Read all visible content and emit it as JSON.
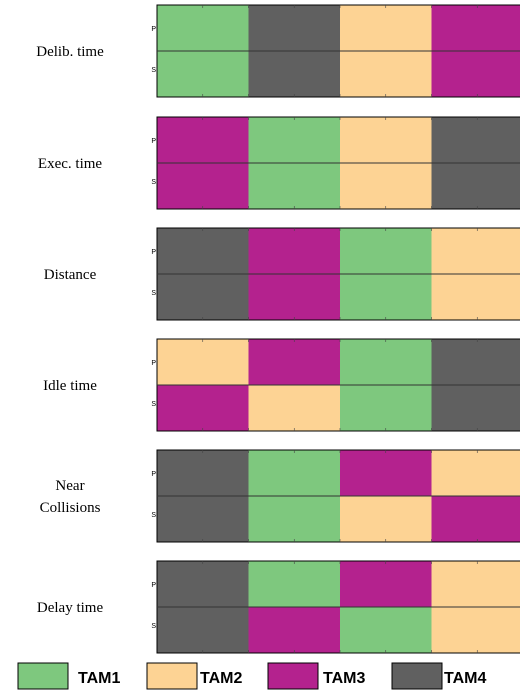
{
  "chart_data": {
    "type": "heatmap",
    "row_labels": [
      "P",
      "S"
    ],
    "categories": [
      "TAM1",
      "TAM2",
      "TAM3",
      "TAM4"
    ],
    "colors": {
      "TAM1": "#7ec87e",
      "TAM2": "#fdd394",
      "TAM3": "#b4228e",
      "TAM4": "#606060"
    },
    "metrics": [
      {
        "label": [
          "Delib. time"
        ],
        "rows": [
          [
            "TAM1",
            "TAM4",
            "TAM2",
            "TAM3"
          ],
          [
            "TAM1",
            "TAM4",
            "TAM2",
            "TAM3"
          ]
        ]
      },
      {
        "label": [
          "Exec. time"
        ],
        "rows": [
          [
            "TAM3",
            "TAM1",
            "TAM2",
            "TAM4"
          ],
          [
            "TAM3",
            "TAM1",
            "TAM2",
            "TAM4"
          ]
        ]
      },
      {
        "label": [
          "Distance"
        ],
        "rows": [
          [
            "TAM4",
            "TAM3",
            "TAM1",
            "TAM2"
          ],
          [
            "TAM4",
            "TAM3",
            "TAM1",
            "TAM2"
          ]
        ]
      },
      {
        "label": [
          "Idle time"
        ],
        "rows": [
          [
            "TAM2",
            "TAM3",
            "TAM1",
            "TAM4"
          ],
          [
            "TAM3",
            "TAM2",
            "TAM1",
            "TAM4"
          ]
        ]
      },
      {
        "label": [
          "Near",
          "Collisions"
        ],
        "rows": [
          [
            "TAM4",
            "TAM1",
            "TAM3",
            "TAM2"
          ],
          [
            "TAM4",
            "TAM1",
            "TAM2",
            "TAM3"
          ]
        ]
      },
      {
        "label": [
          "Delay time"
        ],
        "rows": [
          [
            "TAM4",
            "TAM1",
            "TAM3",
            "TAM2"
          ],
          [
            "TAM4",
            "TAM3",
            "TAM1",
            "TAM2"
          ]
        ]
      }
    ],
    "legend": {
      "position": "bottom",
      "entries": [
        "TAM1",
        "TAM2",
        "TAM3",
        "TAM4"
      ]
    }
  }
}
